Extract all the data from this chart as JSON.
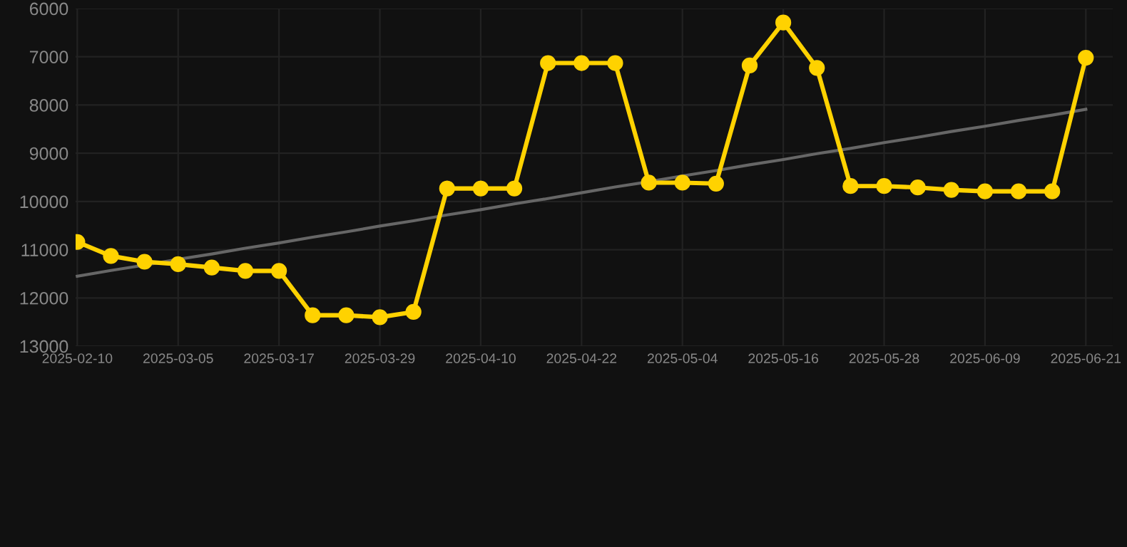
{
  "chart_data": {
    "type": "line",
    "categories": [
      "2025-02-10",
      null,
      null,
      "2025-03-05",
      null,
      null,
      "2025-03-17",
      null,
      null,
      "2025-03-29",
      null,
      null,
      "2025-04-10",
      null,
      null,
      "2025-04-22",
      null,
      null,
      "2025-05-04",
      null,
      null,
      "2025-05-16",
      null,
      null,
      "2025-05-28",
      null,
      null,
      "2025-06-09",
      null,
      null,
      "2025-06-21"
    ],
    "series": [
      {
        "color": "#ffd200",
        "marker": "circle",
        "values": [
          10840,
          11130,
          11250,
          11300,
          11370,
          11440,
          11440,
          12360,
          12360,
          12400,
          12290,
          9730,
          9730,
          9730,
          7130,
          7130,
          7130,
          9610,
          9610,
          9630,
          7180,
          6290,
          7230,
          9680,
          9680,
          9710,
          9760,
          9790,
          9790,
          9790,
          7020
        ]
      },
      {
        "color": "#666666",
        "marker": "none",
        "values": [
          11550,
          11430,
          11320,
          11200,
          11090,
          10970,
          10860,
          10740,
          10630,
          10510,
          10400,
          10280,
          10170,
          10050,
          9940,
          9820,
          9700,
          9590,
          9470,
          9360,
          9240,
          9130,
          9010,
          8900,
          8780,
          8670,
          8550,
          8440,
          8320,
          8210,
          8090
        ]
      }
    ],
    "ylim": [
      13000,
      6000
    ],
    "yticks": [
      6000,
      7000,
      8000,
      9000,
      10000,
      11000,
      12000,
      13000
    ],
    "grid": true,
    "line_style": "solid"
  }
}
